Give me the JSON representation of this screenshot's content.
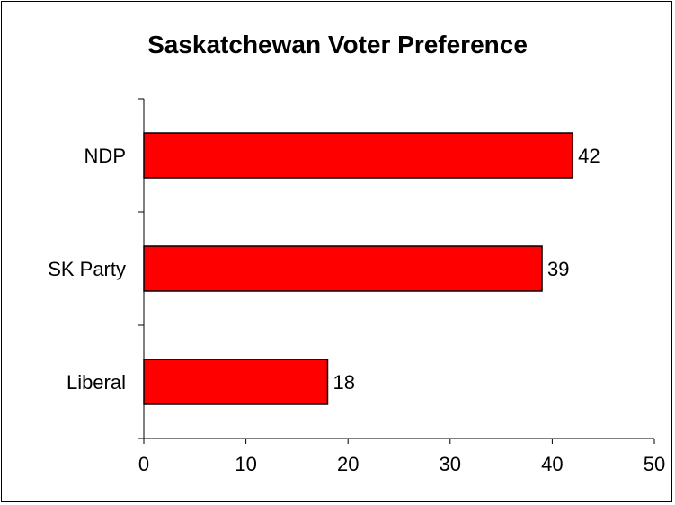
{
  "chart_data": {
    "type": "bar",
    "orientation": "horizontal",
    "title": "Saskatchewan Voter Preference",
    "xlabel": "",
    "ylabel": "",
    "categories": [
      "NDP",
      "SK Party",
      "Liberal"
    ],
    "values": [
      42,
      39,
      18
    ],
    "xlim": [
      0,
      50
    ],
    "x_ticks": [
      0,
      10,
      20,
      30,
      40,
      50
    ],
    "grid": false,
    "legend": "none",
    "data_labels": [
      "42",
      "39",
      "18"
    ],
    "bar_color": "#ff0000",
    "bar_border_color": "#000000"
  }
}
